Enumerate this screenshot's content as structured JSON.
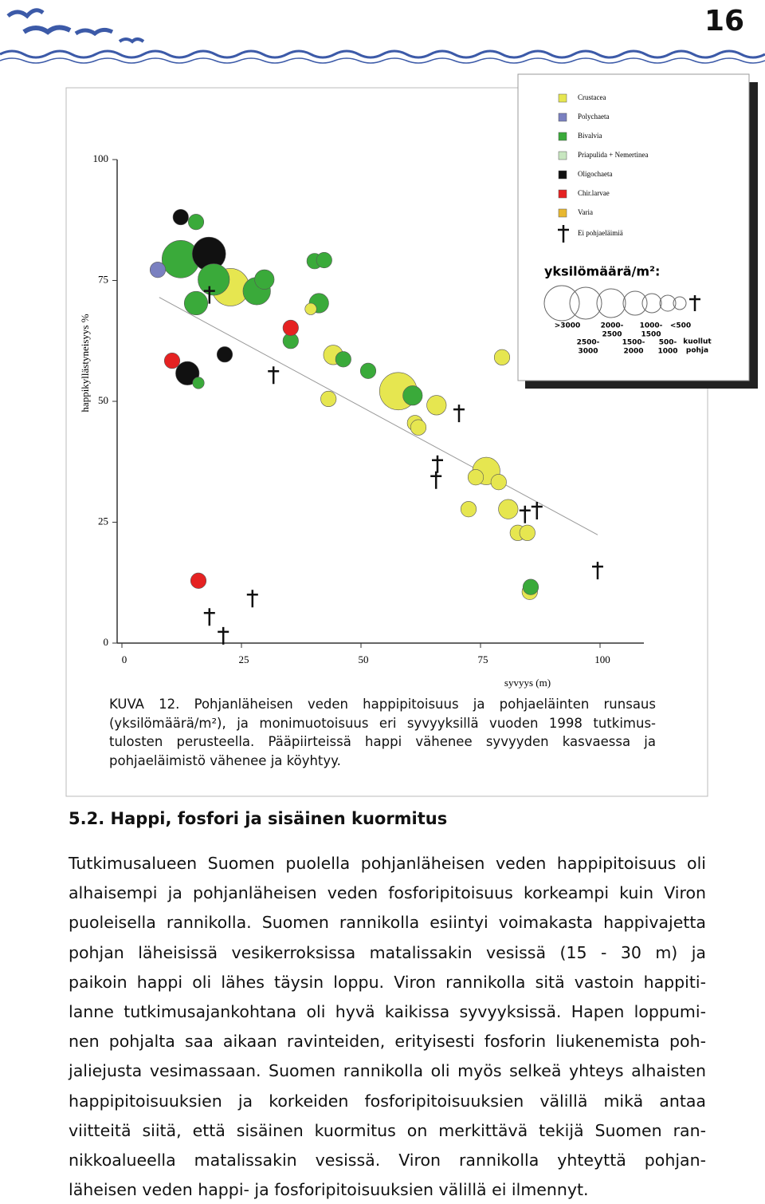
{
  "header": {
    "page_number": "16"
  },
  "chart_data": {
    "type": "scatter",
    "xlabel": "syvyys (m)",
    "ylabel": "happikyllästyneisyys %",
    "xlim": [
      0,
      110
    ],
    "ylim": [
      0,
      100
    ],
    "xticks": [
      0,
      25,
      50,
      75,
      100
    ],
    "yticks": [
      0,
      25,
      50,
      75,
      100
    ],
    "size_title": "yksilömäärä/m²:",
    "size_labels": [
      [
        ">3000"
      ],
      [
        "2500-",
        "3000"
      ],
      [
        "2000-",
        "2500"
      ],
      [
        "1500-",
        "2000"
      ],
      [
        "1000-",
        "1500"
      ],
      [
        "500-",
        "1000"
      ],
      [
        "<500"
      ],
      [
        "kuollut",
        "pohja"
      ]
    ],
    "trend": {
      "x": [
        7.8,
        99.5
      ],
      "y": [
        71.5,
        22.4
      ]
    },
    "series": [
      {
        "name": "Crustacea",
        "color": "#e6e650",
        "x": [
          22.7,
          39.5,
          44.2,
          43.2,
          57.8,
          65.8,
          61.3,
          62,
          76.2,
          74,
          78.8,
          72.5,
          80.8,
          82.8,
          84.8,
          79.5,
          85.3
        ],
        "y": [
          73.6,
          69.1,
          59.6,
          50.5,
          52.1,
          49.2,
          45.5,
          44.6,
          35.6,
          34.3,
          33.3,
          27.7,
          27.7,
          22.8,
          22.8,
          59.1,
          10.6
        ],
        "sizes": [
          3500,
          250,
          1250,
          750,
          3500,
          1250,
          750,
          750,
          2250,
          750,
          750,
          750,
          1250,
          750,
          750,
          750,
          750
        ]
      },
      {
        "name": "Polychaeta",
        "color": "#7a80c0",
        "x": [
          7.5
        ],
        "y": [
          77.2
        ],
        "sizes": [
          750
        ]
      },
      {
        "name": "Bivalvia",
        "color": "#3aaa3a",
        "x": [
          12.3,
          19.2,
          28.2,
          29.8,
          15.5,
          15.5,
          16,
          35.3,
          40.3,
          42.3,
          41.2,
          46.3,
          51.5,
          60.8,
          85.5
        ],
        "y": [
          79.4,
          75.2,
          72.8,
          75.2,
          70.3,
          87.1,
          53.8,
          62.5,
          79,
          79.2,
          70.3,
          58.7,
          56.3,
          51.2,
          11.6
        ],
        "sizes": [
          3500,
          2750,
          2250,
          1250,
          1750,
          750,
          250,
          750,
          750,
          750,
          1250,
          750,
          750,
          1250,
          750
        ]
      },
      {
        "name": "Priapulida + Nemertinea",
        "color": "#c8e6c0",
        "x": [],
        "y": [],
        "sizes": []
      },
      {
        "name": "Oligochaeta",
        "color": "#111111",
        "x": [
          18.2,
          12.3,
          21.5,
          13.7
        ],
        "y": [
          80.5,
          88.1,
          59.7,
          55.8
        ],
        "sizes": [
          3000,
          750,
          750,
          1750
        ]
      },
      {
        "name": "Chir.larvae",
        "color": "#e52222",
        "x": [
          10.5,
          35.3,
          16
        ],
        "y": [
          58.4,
          65.2,
          12.9
        ],
        "sizes": [
          750,
          750,
          750
        ]
      },
      {
        "name": "Varia",
        "color": "#e8b830",
        "x": [],
        "y": [],
        "sizes": []
      },
      {
        "name": "Ei pohjaeläimiä",
        "color": "#111111",
        "marker": "cross",
        "x": [
          18.3,
          31.7,
          70.5,
          66,
          65.7,
          84.3,
          86.8,
          99.5,
          18.3,
          21.2,
          27.3
        ],
        "y": [
          72,
          55.4,
          47.5,
          37,
          33.7,
          26.6,
          27.4,
          15,
          5.4,
          1.5,
          9.2
        ]
      }
    ]
  },
  "caption": {
    "lines": [
      "KUVA 12. Pohjanläheisen veden happipitoisuus ja pohjaeläinten runsaus",
      "(yksilömäärä/m²), ja monimuotoisuus eri syvyyksillä vuoden 1998 tutkimus-",
      "tulosten perusteella. Pääpiirteissä happi vähenee syvyyden kasvaessa ja",
      "pohjaeläimistö vähenee ja köyhtyy."
    ]
  },
  "section": {
    "heading": "5.2. Happi, fosfori ja sisäinen kuormitus",
    "lines": [
      "Tutkimusalueen Suomen puolella pohjanläheisen veden happipitoisuus oli",
      "alhaisempi ja pohjanläheisen veden fosforipitoisuus korkeampi kuin Viron",
      "puoleisella rannikolla. Suomen rannikolla esiintyi voimakasta happivajetta",
      "pohjan läheisissä vesikerroksissa matalissakin vesissä (15 - 30 m) ja",
      "paikoin happi oli lähes täysin loppu. Viron rannikolla sitä vastoin happiti-",
      "lanne tutkimusajankohtana oli hyvä kaikissa syvyyksissä. Hapen loppumi-",
      "nen pohjalta saa aikaan ravinteiden, erityisesti fosforin liukenemista poh-",
      "jaliejusta vesimassaan. Suomen rannikolla oli myös selkeä yhteys alhaisten",
      "happipitoisuuksien ja korkeiden fosforipitoisuuksien välillä mikä antaa",
      "viitteitä siitä, että sisäinen kuormitus on merkittävä tekijä Suomen ran-",
      "nikkoalueella matalissakin vesissä. Viron rannikolla yhteyttä pohjan-",
      "läheisen veden happi- ja fosforipitoisuuksien välillä ei ilmennyt."
    ]
  }
}
